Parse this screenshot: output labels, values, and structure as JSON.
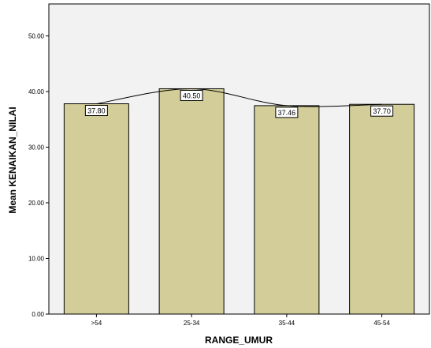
{
  "chart_data": {
    "type": "bar",
    "categories": [
      ">54",
      "25-34",
      "35-44",
      "45-54"
    ],
    "values": [
      37.8,
      40.5,
      37.46,
      37.7
    ],
    "data_labels": [
      "37.80",
      "40.50",
      "37.46",
      "37.70"
    ],
    "xlabel": "RANGE_UMUR",
    "ylabel": "Mean KENAIKAN_NILAI",
    "ylim": [
      0,
      55
    ],
    "yticks": [
      0,
      10,
      20,
      30,
      40,
      50
    ],
    "ytick_labels": [
      "0.00",
      "10.00",
      "20.00",
      "30.00",
      "40.00",
      "50.00"
    ],
    "overlay": "interpolation-line",
    "grid": false,
    "legend": "none",
    "colors": {
      "bar_fill": "#d3ce99",
      "bar_stroke": "#000000",
      "line": "#000000",
      "plot_background": "#f2f2f2"
    }
  }
}
